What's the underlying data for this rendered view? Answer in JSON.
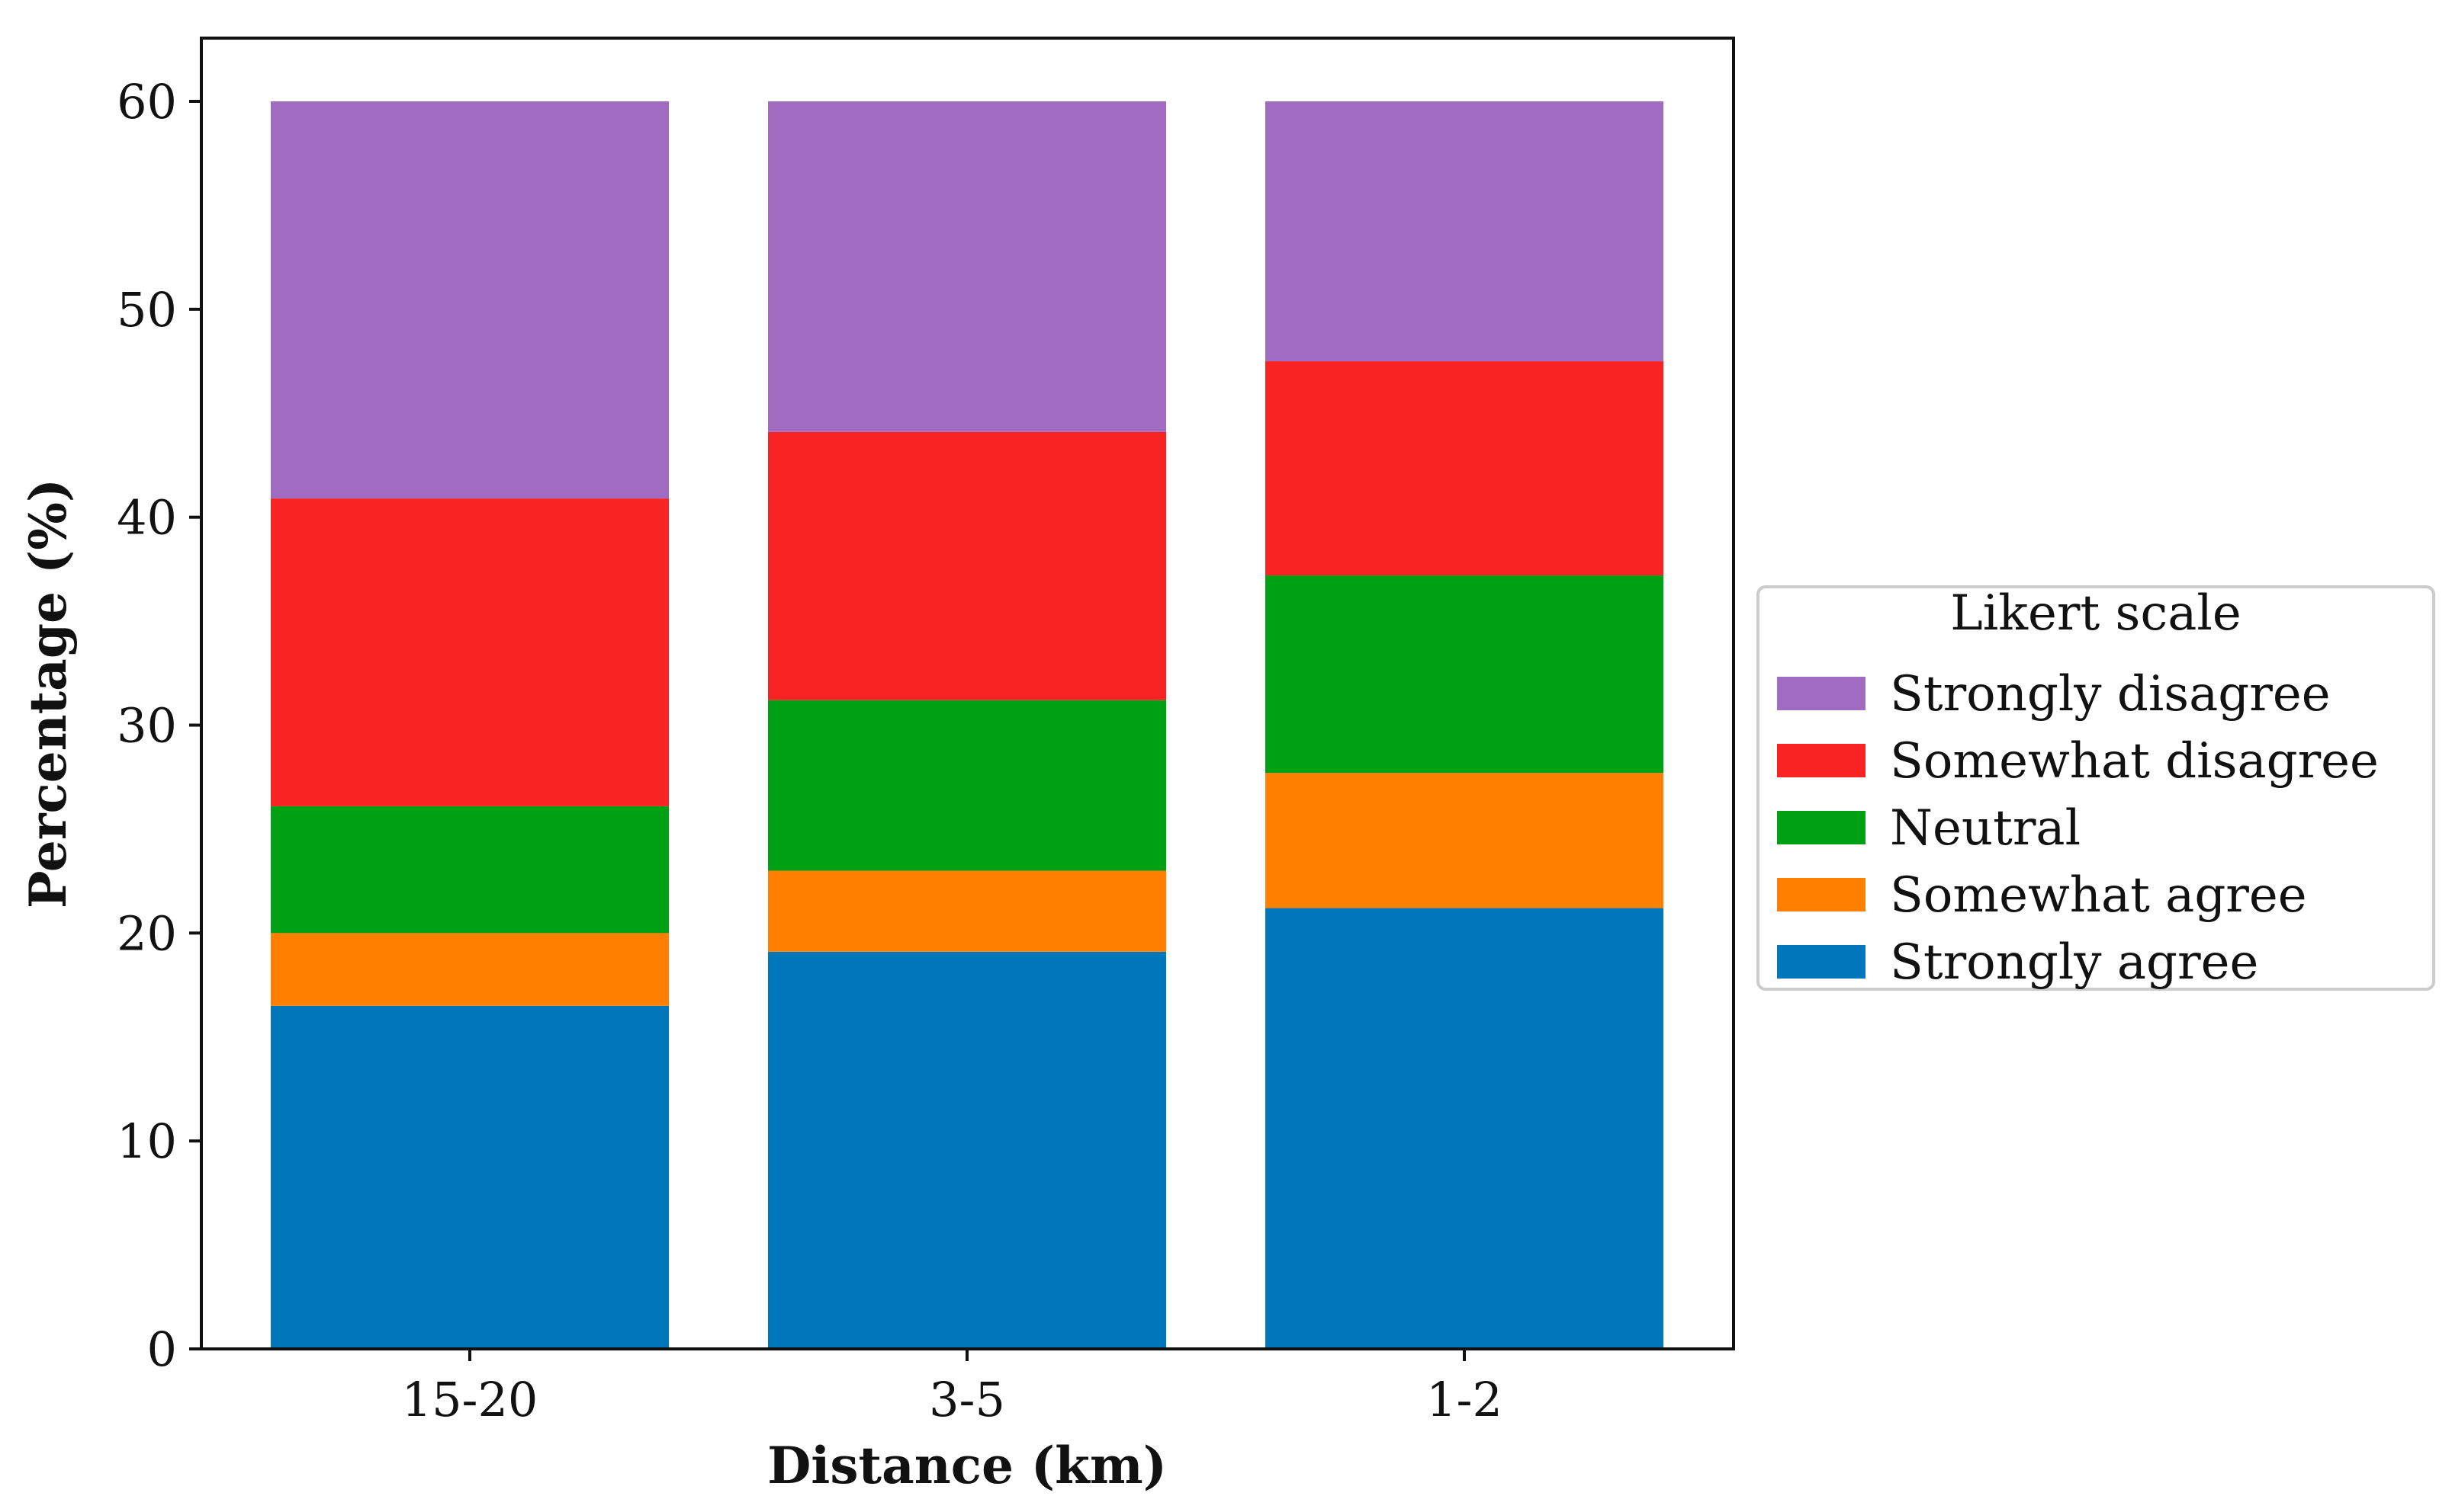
{
  "chart_data": {
    "type": "bar",
    "stacked": true,
    "title": "",
    "xlabel": "Distance (km)",
    "ylabel": "Percentage (%)",
    "ylim": [
      0,
      62.5
    ],
    "yticks": [
      0,
      10,
      20,
      30,
      40,
      50,
      60
    ],
    "categories": [
      "15-20",
      "3-5",
      "1-2"
    ],
    "legend": {
      "title": "Likert scale",
      "placement": "right"
    },
    "series": [
      {
        "name": "Strongly agree",
        "color": "#0077bb",
        "values": [
          16.5,
          19.1,
          21.2
        ]
      },
      {
        "name": "Somewhat agree",
        "color": "#ff8000",
        "values": [
          3.5,
          3.9,
          6.5
        ]
      },
      {
        "name": "Neutral",
        "color": "#00a014",
        "values": [
          6.1,
          8.2,
          9.5
        ]
      },
      {
        "name": "Somewhat disagree",
        "color": "#f82424",
        "values": [
          14.8,
          12.9,
          10.3
        ]
      },
      {
        "name": "Strongly disagree",
        "color": "#a06bc0",
        "values": [
          19.1,
          15.9,
          12.5
        ]
      }
    ],
    "legend_order": [
      "Strongly disagree",
      "Somewhat disagree",
      "Neutral",
      "Somewhat agree",
      "Strongly agree"
    ]
  }
}
